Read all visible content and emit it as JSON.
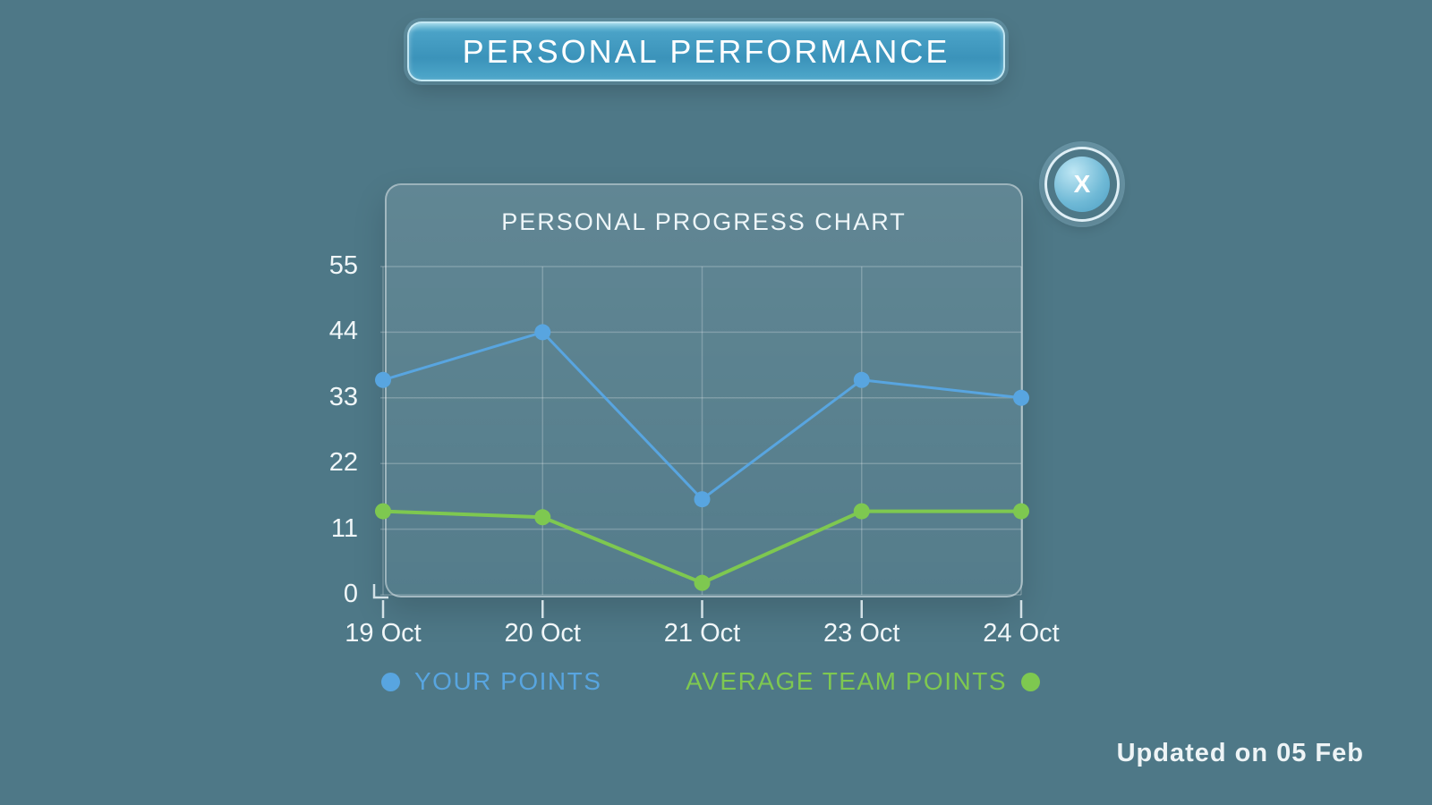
{
  "header": {
    "title": "PERSONAL PERFORMANCE"
  },
  "panel": {
    "title": "PERSONAL PROGRESS CHART",
    "close_label": "X"
  },
  "legend": {
    "series1_label": "YOUR POINTS",
    "series2_label": "AVERAGE TEAM POINTS"
  },
  "footer": {
    "updated": "Updated on 05 Feb"
  },
  "colors": {
    "background": "#4e7887",
    "your_points": "#58a5e0",
    "team_points": "#7ec850",
    "banner_blue": "#3b93ba",
    "text_light": "#f0f6f8"
  },
  "chart_data": {
    "type": "line",
    "title": "PERSONAL PROGRESS CHART",
    "categories": [
      "19 Oct",
      "20 Oct",
      "21 Oct",
      "23 Oct",
      "24 Oct"
    ],
    "series": [
      {
        "name": "YOUR POINTS",
        "color": "#58a5e0",
        "values": [
          36,
          44,
          16,
          36,
          33
        ]
      },
      {
        "name": "AVERAGE TEAM POINTS",
        "color": "#7ec850",
        "values": [
          14,
          13,
          2,
          14,
          14
        ]
      }
    ],
    "xlabel": "",
    "ylabel": "",
    "y_ticks": [
      0,
      11,
      22,
      33,
      44,
      55
    ],
    "ylim": [
      0,
      55
    ],
    "grid": true,
    "legend_position": "bottom"
  }
}
